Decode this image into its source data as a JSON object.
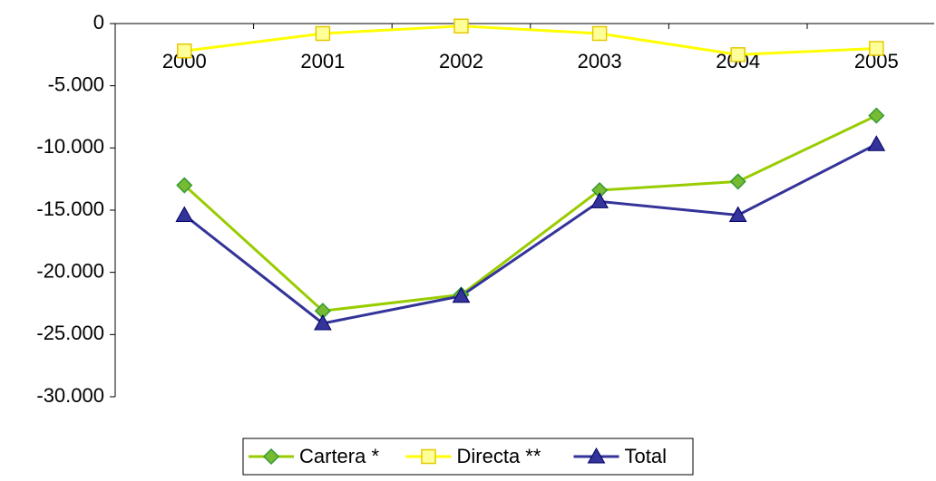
{
  "chart_data": {
    "type": "line",
    "categories": [
      "2000",
      "2001",
      "2002",
      "2003",
      "2004",
      "2005"
    ],
    "series": [
      {
        "name": "Cartera *",
        "color": "#99cc00",
        "marker": "diamond",
        "marker_color": "#77bb33",
        "values": [
          -13000,
          -23100,
          -21800,
          -13400,
          -12700,
          -7400
        ]
      },
      {
        "name": "Directa **",
        "color": "#ffff00",
        "marker": "square",
        "marker_color": "#ffff99",
        "values": [
          -2200,
          -800,
          -200,
          -800,
          -2500,
          -2000
        ]
      },
      {
        "name": "Total",
        "color": "#333399",
        "marker": "triangle",
        "marker_color": "#333399",
        "values": [
          -15400,
          -24100,
          -21900,
          -14300,
          -15400,
          -9700
        ]
      }
    ],
    "ylim": [
      -30000,
      0
    ],
    "yticks": [
      {
        "value": -30000,
        "label": "-30.000"
      },
      {
        "value": -25000,
        "label": "-25.000"
      },
      {
        "value": -20000,
        "label": "-20.000"
      },
      {
        "value": -15000,
        "label": "-15.000"
      },
      {
        "value": -10000,
        "label": "-10.000"
      },
      {
        "value": -5000,
        "label": "-5.000"
      },
      0
    ],
    "grid": false,
    "legend": "bottom"
  }
}
